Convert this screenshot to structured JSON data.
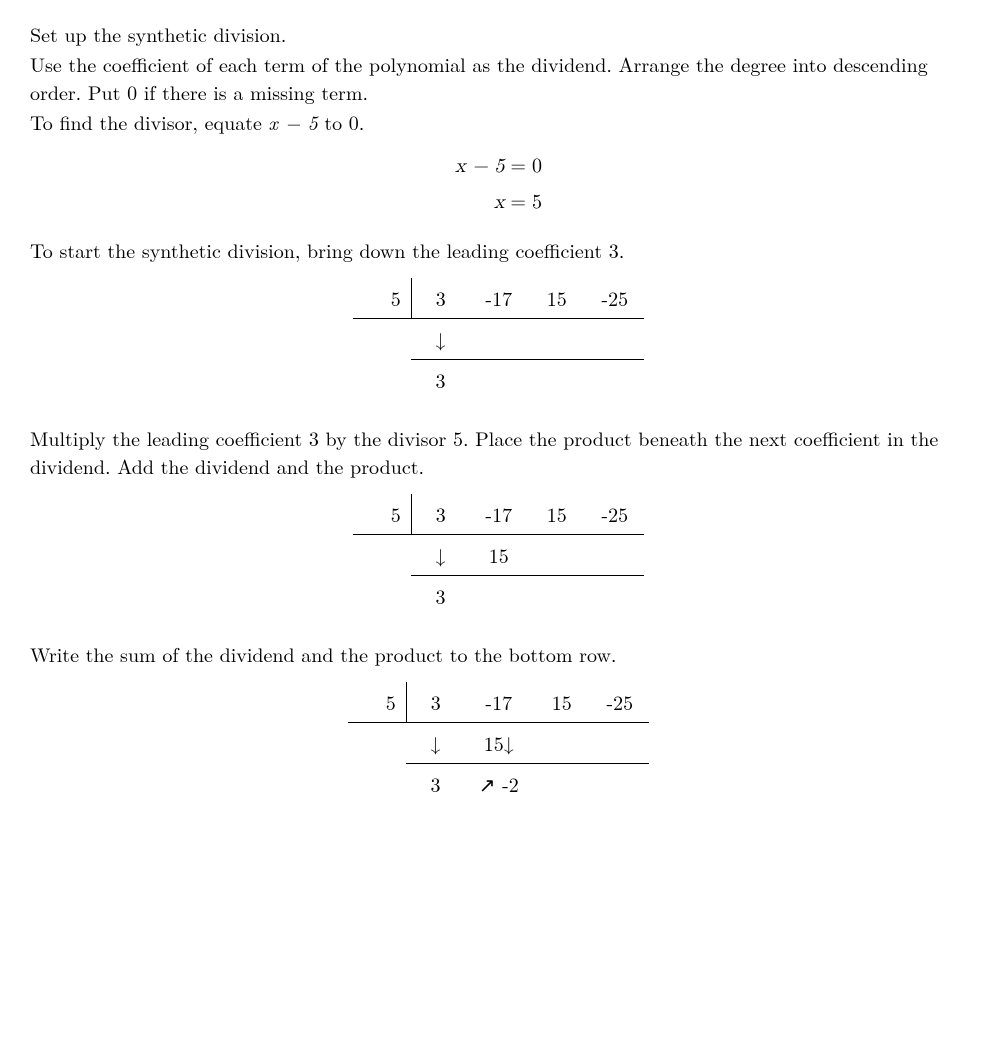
{
  "p1": "Set up the synthetic division.",
  "p2a": "Use the coefficient of each term of the polynomial as the dividend. Arrange the degree into descending order. Put 0 if there is a missing term.",
  "p2b_pre": "To find the divisor, equate ",
  "p2b_math": "x − 5",
  "p2b_post": " to 0.",
  "eq1": {
    "lhs1": "x − 5",
    "rhs1": "0",
    "lhs2": "x",
    "rhs2": "5"
  },
  "p3": "To start the synthetic division, bring down the leading coefficient 3.",
  "syn1": {
    "divisor": "5",
    "top": [
      "3",
      "-17",
      "15",
      "-25"
    ],
    "mid": [
      "↓",
      "",
      "",
      ""
    ],
    "bot": [
      "3",
      "",
      "",
      ""
    ]
  },
  "p4": "Multiply the leading coefficient 3 by the divisor 5. Place the product beneath the next coefficient in the dividend. Add the dividend and the product.",
  "syn2": {
    "divisor": "5",
    "top": [
      "3",
      "-17",
      "15",
      "-25"
    ],
    "mid": [
      "↓",
      "15",
      "",
      ""
    ],
    "bot": [
      "3",
      "",
      "",
      ""
    ]
  },
  "p5": "Write the sum of the dividend and the product to the bottom row.",
  "syn3": {
    "divisor": "5",
    "top": [
      "3",
      "-17",
      "15",
      "-25"
    ],
    "mid": [
      "↓",
      "15↓",
      "",
      ""
    ],
    "bot": [
      "3",
      "↗ -2",
      "",
      ""
    ]
  }
}
